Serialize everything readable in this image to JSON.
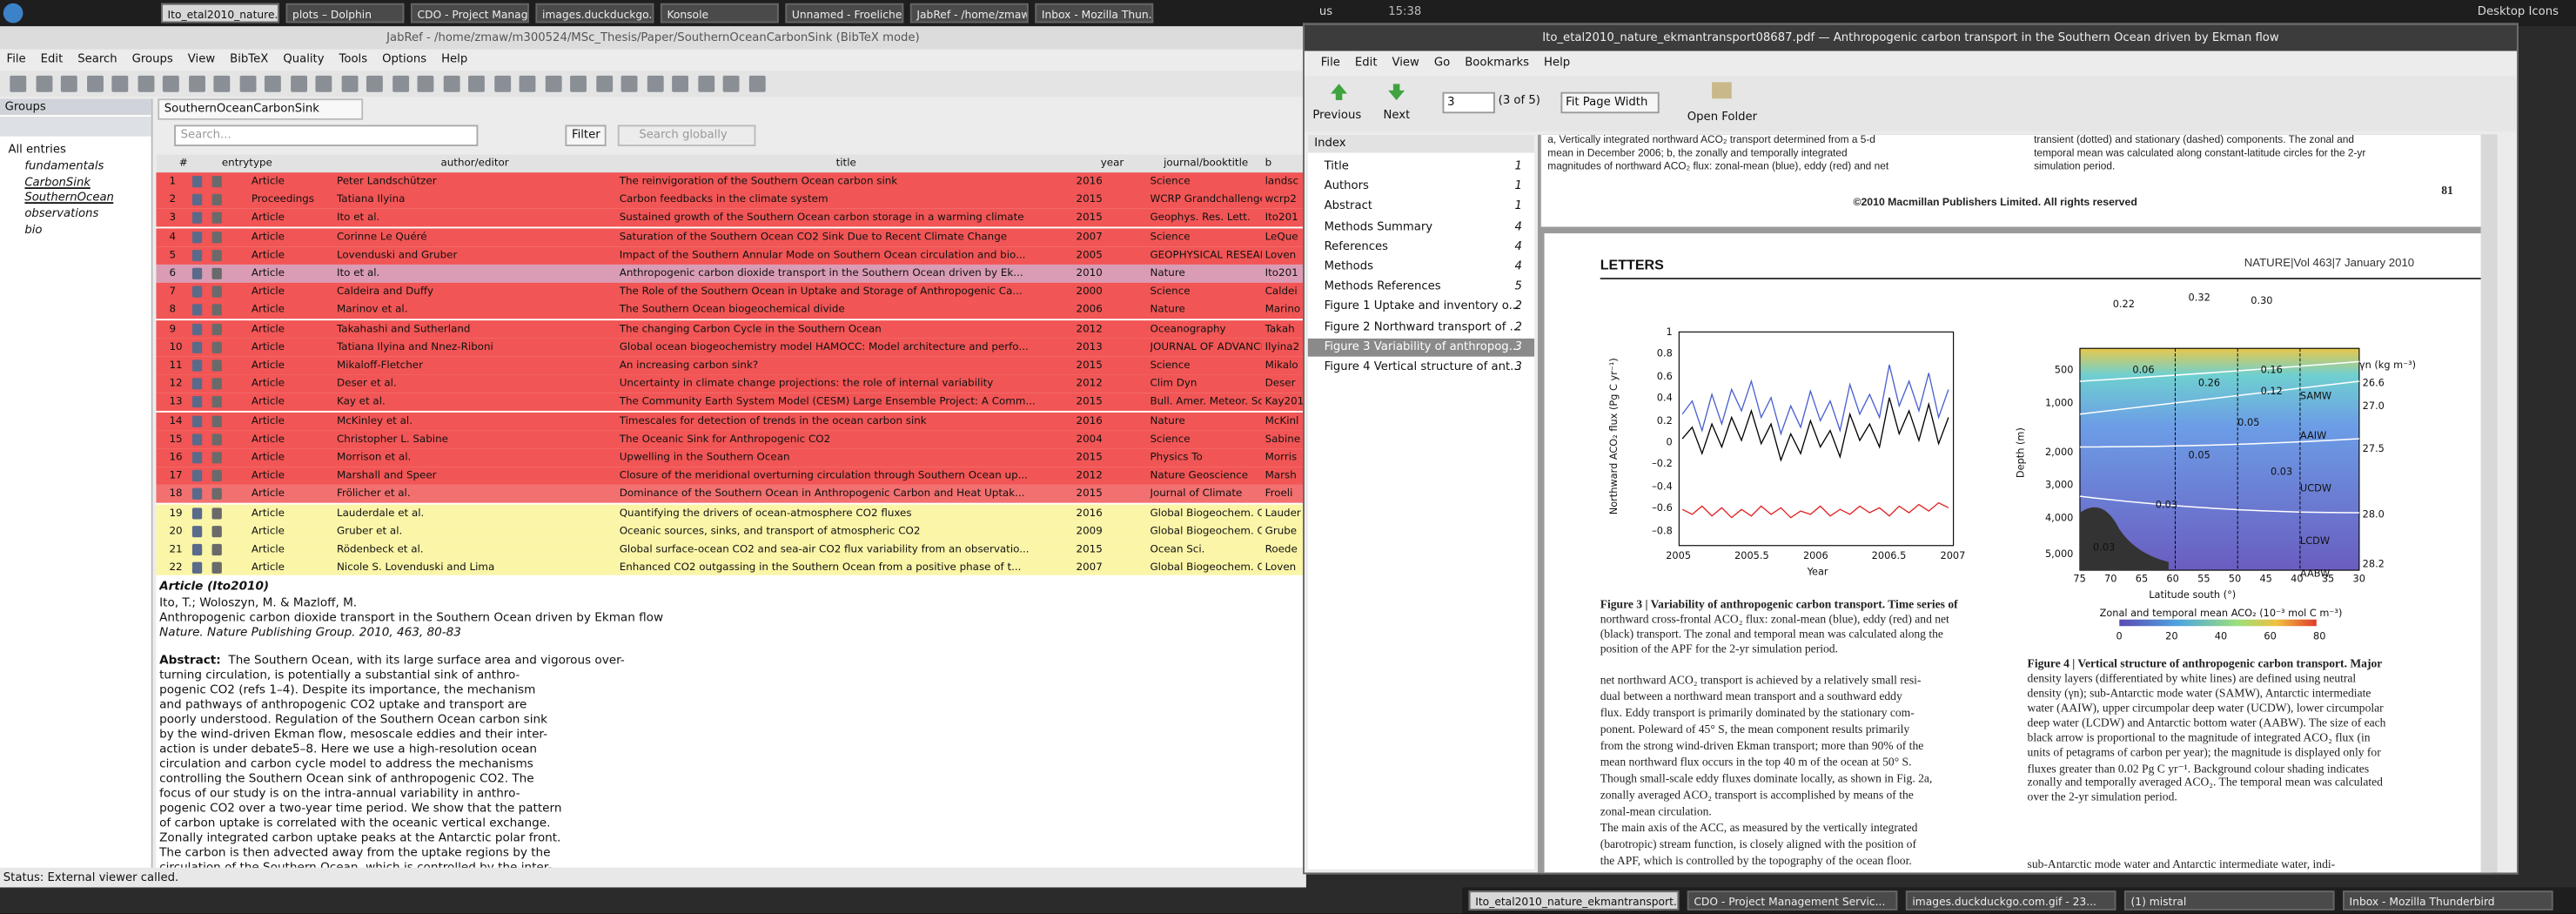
{
  "top_taskbar": {
    "tasks": [
      "Ito_etal2010_nature...",
      "plots – Dolphin",
      "CDO - Project Manag...",
      "images.duckduckgo...",
      "Konsole",
      "Unnamed - Froelicher",
      "JabRef - /home/zmaw",
      "Inbox - Mozilla Thun..."
    ],
    "keyboard": "us",
    "clock": "15:38",
    "desktop": "Desktop Icons"
  },
  "jabref": {
    "title": "JabRef - /home/zmaw/m300524/MSc_Thesis/Paper/SouthernOceanCarbonSink (BibTeX mode)",
    "menu": [
      "File",
      "Edit",
      "Search",
      "Groups",
      "View",
      "BibTeX",
      "Quality",
      "Tools",
      "Options",
      "Help"
    ],
    "groups": {
      "title": "Groups",
      "items": [
        "All entries",
        "fundamentals",
        "CarbonSink",
        "SouthernOcean",
        "observations",
        "bio"
      ]
    },
    "tab": "SouthernOceanCarbonSink",
    "search": {
      "placeholder": "Search...",
      "filter": "Filter",
      "global": "Search globally"
    },
    "table": {
      "columns": [
        "#",
        "entrytype",
        "author/editor",
        "title",
        "year",
        "journal/booktitle",
        "b"
      ],
      "rows": [
        {
          "cells": [
            "1",
            "Article",
            "Peter Landschützer",
            "The reinvigoration of the Southern Ocean carbon sink",
            "2016",
            "Science",
            "landsc"
          ],
          "color": "#f25555"
        },
        {
          "cells": [
            "2",
            "Proceedings",
            "Tatiana Ilyina",
            "Carbon feedbacks in the climate system",
            "2015",
            "WCRP Grandchallenge",
            "wcrp2"
          ],
          "color": "#f25555"
        },
        {
          "cells": [
            "3",
            "Article",
            "Ito et al.",
            "Sustained growth of the Southern Ocean carbon storage in a warming climate",
            "2015",
            "Geophys. Res. Lett.",
            "Ito201"
          ],
          "color": "#f25555"
        },
        {
          "cells": [
            "4",
            "Article",
            "Corinne Le Quéré",
            "Saturation of the Southern Ocean CO2 Sink Due to Recent Climate Change",
            "2007",
            "Science",
            "LeQue"
          ],
          "color": "#f25555"
        },
        {
          "cells": [
            "5",
            "Article",
            "Lovenduski and Gruber",
            "Impact of the Southern Annular Mode on Southern Ocean circulation and bio...",
            "2005",
            "GEOPHYSICAL RESEAR...",
            "Loven"
          ],
          "color": "#f25555"
        },
        {
          "cells": [
            "6",
            "Article",
            "Ito et al.",
            "Anthropogenic carbon dioxide transport in the Southern Ocean driven by Ek...",
            "2010",
            "Nature",
            "Ito201"
          ],
          "color": "#d99cb4"
        },
        {
          "cells": [
            "7",
            "Article",
            "Caldeira and Duffy",
            "The Role of the Southern Ocean in Uptake and Storage of Anthropogenic Ca...",
            "2000",
            "Science",
            "Caldei"
          ],
          "color": "#f25555"
        },
        {
          "cells": [
            "8",
            "Article",
            "Marinov et al.",
            "The Southern Ocean biogeochemical divide",
            "2006",
            "Nature",
            "Marino"
          ],
          "color": "#f25555"
        },
        {
          "cells": [
            "9",
            "Article",
            "Takahashi and Sutherland",
            "The changing Carbon Cycle in the Southern Ocean",
            "2012",
            "Oceanography",
            "Takah"
          ],
          "color": "#f25555"
        },
        {
          "cells": [
            "10",
            "Article",
            "Tatiana Ilyina and Nnez-Riboni",
            "Global ocean biogeochemistry model HAMOCC: Model architecture and perfo...",
            "2013",
            "JOURNAL OF ADVANCES...",
            "Ilyina2"
          ],
          "color": "#f25555"
        },
        {
          "cells": [
            "11",
            "Article",
            "Mikaloff-Fletcher",
            "An increasing carbon sink?",
            "2015",
            "Science",
            "Mikalo"
          ],
          "color": "#f25555"
        },
        {
          "cells": [
            "12",
            "Article",
            "Deser et al.",
            "Uncertainty in climate change projections: the role of internal variability",
            "2012",
            "Clim Dyn",
            "Deser"
          ],
          "color": "#f25555"
        },
        {
          "cells": [
            "13",
            "Article",
            "Kay et al.",
            "The Community Earth System Model (CESM) Large Ensemble Project: A Comm...",
            "2015",
            "Bull. Amer. Meteor. Soc.",
            "Kay201"
          ],
          "color": "#f25555"
        },
        {
          "cells": [
            "14",
            "Article",
            "McKinley et al.",
            "Timescales for detection of trends in the ocean carbon sink",
            "2016",
            "Nature",
            "McKinl"
          ],
          "color": "#f25555"
        },
        {
          "cells": [
            "15",
            "Article",
            "Christopher L. Sabine",
            "The Oceanic Sink for Anthropogenic CO2",
            "2004",
            "Science",
            "Sabine"
          ],
          "color": "#f25555"
        },
        {
          "cells": [
            "16",
            "Article",
            "Morrison et al.",
            "Upwelling in the Southern Ocean",
            "2015",
            "Physics To",
            "Morris"
          ],
          "color": "#f25555"
        },
        {
          "cells": [
            "17",
            "Article",
            "Marshall and Speer",
            "Closure of the meridional overturning circulation through Southern Ocean up...",
            "2012",
            "Nature Geoscience",
            "Marsh"
          ],
          "color": "#f25555"
        },
        {
          "cells": [
            "18",
            "Article",
            "Frölicher et al.",
            "Dominance of the Southern Ocean in Anthropogenic Carbon and Heat Uptak...",
            "2015",
            "Journal of Climate",
            "Froeli"
          ],
          "color": "#f27070"
        },
        {
          "cells": [
            "19",
            "Article",
            "Lauderdale et al.",
            "Quantifying the drivers of ocean-atmosphere CO2 fluxes",
            "2016",
            "Global Biogeochem. Cy...",
            "Lauder"
          ],
          "color": "#fbf5a8"
        },
        {
          "cells": [
            "20",
            "Article",
            "Gruber et al.",
            "Oceanic sources, sinks, and transport of atmospheric CO2",
            "2009",
            "Global Biogeochem. Cy...",
            "Grube"
          ],
          "color": "#fbf5a8"
        },
        {
          "cells": [
            "21",
            "Article",
            "Rödenbeck et al.",
            "Global surface-ocean CO2 and sea-air CO2 flux variability from an observatio...",
            "2015",
            "Ocean Sci.",
            "Roede"
          ],
          "color": "#fbf5a8"
        },
        {
          "cells": [
            "22",
            "Article",
            "Nicole S. Lovenduski and Lima",
            "Enhanced CO2 outgassing in the Southern Ocean from a positive phase of t...",
            "2007",
            "Global Biogeochem. Cy...",
            "Loven"
          ],
          "color": "#fbf5a8"
        }
      ]
    },
    "preview": {
      "heading": "Article (Ito2010)",
      "authors": "Ito, T.; Woloszyn, M. & Mazloff, M.",
      "title": "Anthropogenic carbon dioxide transport in the Southern Ocean driven by Ekman flow",
      "source": "Nature. Nature Publishing Group. 2010, 463, 80-83",
      "abstract_label": "Abstract:",
      "abstract_lines": [
        "The Southern Ocean, with its large surface area and vigorous over-",
        "turning circulation, is potentially a substantial sink of anthro-",
        "pogenic CO2 (refs 1–4). Despite its importance, the mechanism",
        "and pathways of anthropogenic CO2 uptake and transport are",
        "poorly understood. Regulation of the Southern Ocean carbon sink",
        "by the wind-driven Ekman flow, mesoscale eddies and their inter-",
        "action is under debate5–8. Here we use a high-resolution ocean",
        "circulation and carbon cycle model to address the mechanisms",
        "controlling the Southern Ocean sink of anthropogenic CO2. The",
        "focus of our study is on the intra-annual variability in anthro-",
        "pogenic CO2 over a two-year time period. We show that the pattern",
        "of carbon uptake is correlated with the oceanic vertical exchange.",
        "Zonally integrated carbon uptake peaks at the Antarctic polar front.",
        "The carbon is then advected away from the uptake regions by the",
        "circulation of the Southern Ocean, which is controlled by the inter-"
      ]
    },
    "status": "Status: External viewer called."
  },
  "viewer": {
    "title": "Ito_etal2010_nature_ekmantransport08687.pdf — Anthropogenic carbon transport in the Southern Ocean driven by Ekman flow",
    "menu": [
      "File",
      "Edit",
      "View",
      "Go",
      "Bookmarks",
      "Help"
    ],
    "toolbar": {
      "previous": "Previous",
      "next": "Next",
      "page": "3",
      "page_of": "(3 of 5)",
      "zoom": "Fit Page Width",
      "open_folder": "Open Folder"
    },
    "index": {
      "title": "Index",
      "items": [
        {
          "label": "Title",
          "page": "1"
        },
        {
          "label": "Authors",
          "page": "1"
        },
        {
          "label": "Abstract",
          "page": "1"
        },
        {
          "label": "Methods Summary",
          "page": "4"
        },
        {
          "label": "References",
          "page": "4"
        },
        {
          "label": "Methods",
          "page": "4"
        },
        {
          "label": "Methods References",
          "page": "5"
        },
        {
          "label": "Figure 1 Uptake and inventory o...",
          "page": "2"
        },
        {
          "label": "Figure 2 Northward transport of ...",
          "page": "2"
        },
        {
          "label": "Figure 3 Variability of anthropog...",
          "page": "3"
        },
        {
          "label": "Figure 4 Vertical structure of ant...",
          "page": "3"
        }
      ]
    },
    "prev_page": {
      "left_lines": [
        "a, Vertically integrated northward ACO₂ transport determined from a 5-d",
        "mean in December 2006; b, the zonally and temporally integrated",
        "magnitudes of northward ACO₂ flux: zonal-mean (blue), eddy (red) and net"
      ],
      "right_lines": [
        "transient (dotted) and stationary (dashed) components. The zonal and",
        "temporal mean was calculated along constant-latitude circles for the 2-yr",
        "simulation period."
      ],
      "copyright": "©2010 Macmillan Publishers Limited. All rights reserved",
      "page_number": "81"
    },
    "page": {
      "section": "LETTERS",
      "journal": "NATURE|Vol 463|7 January 2010",
      "figure3": {
        "ylabel": "Northward ACO₂ flux (Pg C yr⁻¹)",
        "xlabel": "Year",
        "yticks": [
          "1",
          "0.8",
          "0.6",
          "0.4",
          "0.2",
          "0",
          "–0.2",
          "–0.4",
          "–0.6",
          "–0.8"
        ],
        "xticks": [
          "2005",
          "2005.5",
          "2006",
          "2006.5",
          "2007"
        ],
        "caption_lines": [
          "Figure 3 | Variability of anthropogenic carbon transport. Time series of",
          "northward cross-frontal ACO₂ flux: zonal-mean (blue), eddy (red) and net",
          "(black) transport. The zonal and temporal mean was calculated along the",
          "position of the APF for the 2-yr simulation period."
        ]
      },
      "figure4": {
        "ylabel": "Depth (m)",
        "xlabel": "Latitude south (°)",
        "yticks": [
          "500",
          "1,000",
          "2,000",
          "3,000",
          "4,000",
          "5,000"
        ],
        "xticks": [
          "75",
          "70",
          "65",
          "60",
          "55",
          "50",
          "45",
          "40",
          "35",
          "30"
        ],
        "top_arrows": [
          "0.22",
          "0.32",
          "0.30"
        ],
        "flux_labels": [
          "0.06",
          "0.26",
          "0.16",
          "0.12",
          "0.05",
          "0.05",
          "0.03",
          "0.03",
          "0.03"
        ],
        "water_masses": [
          "SAMW",
          "AAIW",
          "UCDW",
          "LCDW",
          "AABW"
        ],
        "density_title": "γn (kg m⁻³)",
        "density_ticks": [
          "26.6",
          "27.0",
          "27.5",
          "28.0",
          "28.2"
        ],
        "colorbar_label": "Zonal and temporal mean ACO₂ (10⁻³ mol C m⁻³)",
        "colorbar_ticks": [
          "0",
          "20",
          "40",
          "60",
          "80"
        ],
        "caption_lines": [
          "Figure 4 | Vertical structure of anthropogenic carbon transport. Major",
          "density layers (differentiated by white lines) are defined using neutral",
          "density (γn); sub-Antarctic mode water (SAMW), Antarctic intermediate",
          "water (AAIW), upper circumpolar deep water (UCDW), lower circumpolar",
          "deep water (LCDW) and Antarctic bottom water (AABW). The size of each",
          "black arrow is proportional to the magnitude of integrated ACO₂ flux (in",
          "units of petagrams of carbon per year); the magnitude is displayed only for",
          "fluxes greater than 0.02 Pg C yr⁻¹. Background colour shading indicates",
          "zonally and temporally averaged ACO₂. The temporal mean was calculated",
          "over the 2-yr simulation period."
        ]
      },
      "body_left": [
        "net northward ACO₂ transport is achieved by a relatively small resi-",
        "dual between a northward mean transport and a southward eddy",
        "flux. Eddy transport is primarily dominated by the stationary com-",
        "ponent. Poleward of 45° S, the mean component results primarily",
        "from the strong wind-driven Ekman transport; more than 90% of the",
        "mean northward flux occurs in the top 40 m of the ocean at 50° S.",
        "Though small-scale eddy fluxes dominate locally, as shown in Fig. 2a,",
        "zonally averaged ACO₂ transport is accomplished by means of the",
        "zonal-mean circulation.",
        "The main axis of the ACC, as measured by the vertically integrated",
        "(barotropic) stream function, is closely aligned with the position of",
        "the APF, which is controlled by the topography of the ocean floor."
      ],
      "body_right": [
        "sub-Antarctic mode water and Antarctic intermediate water, indi-"
      ]
    }
  },
  "bottom_taskbar": {
    "tasks": [
      "Ito_etal2010_nature_ekmantransport...",
      "CDO - Project Management Servic...",
      "images.duckduckgo.com.gif - 23...",
      "(1) mistral",
      "Inbox - Mozilla Thunderbird"
    ]
  }
}
